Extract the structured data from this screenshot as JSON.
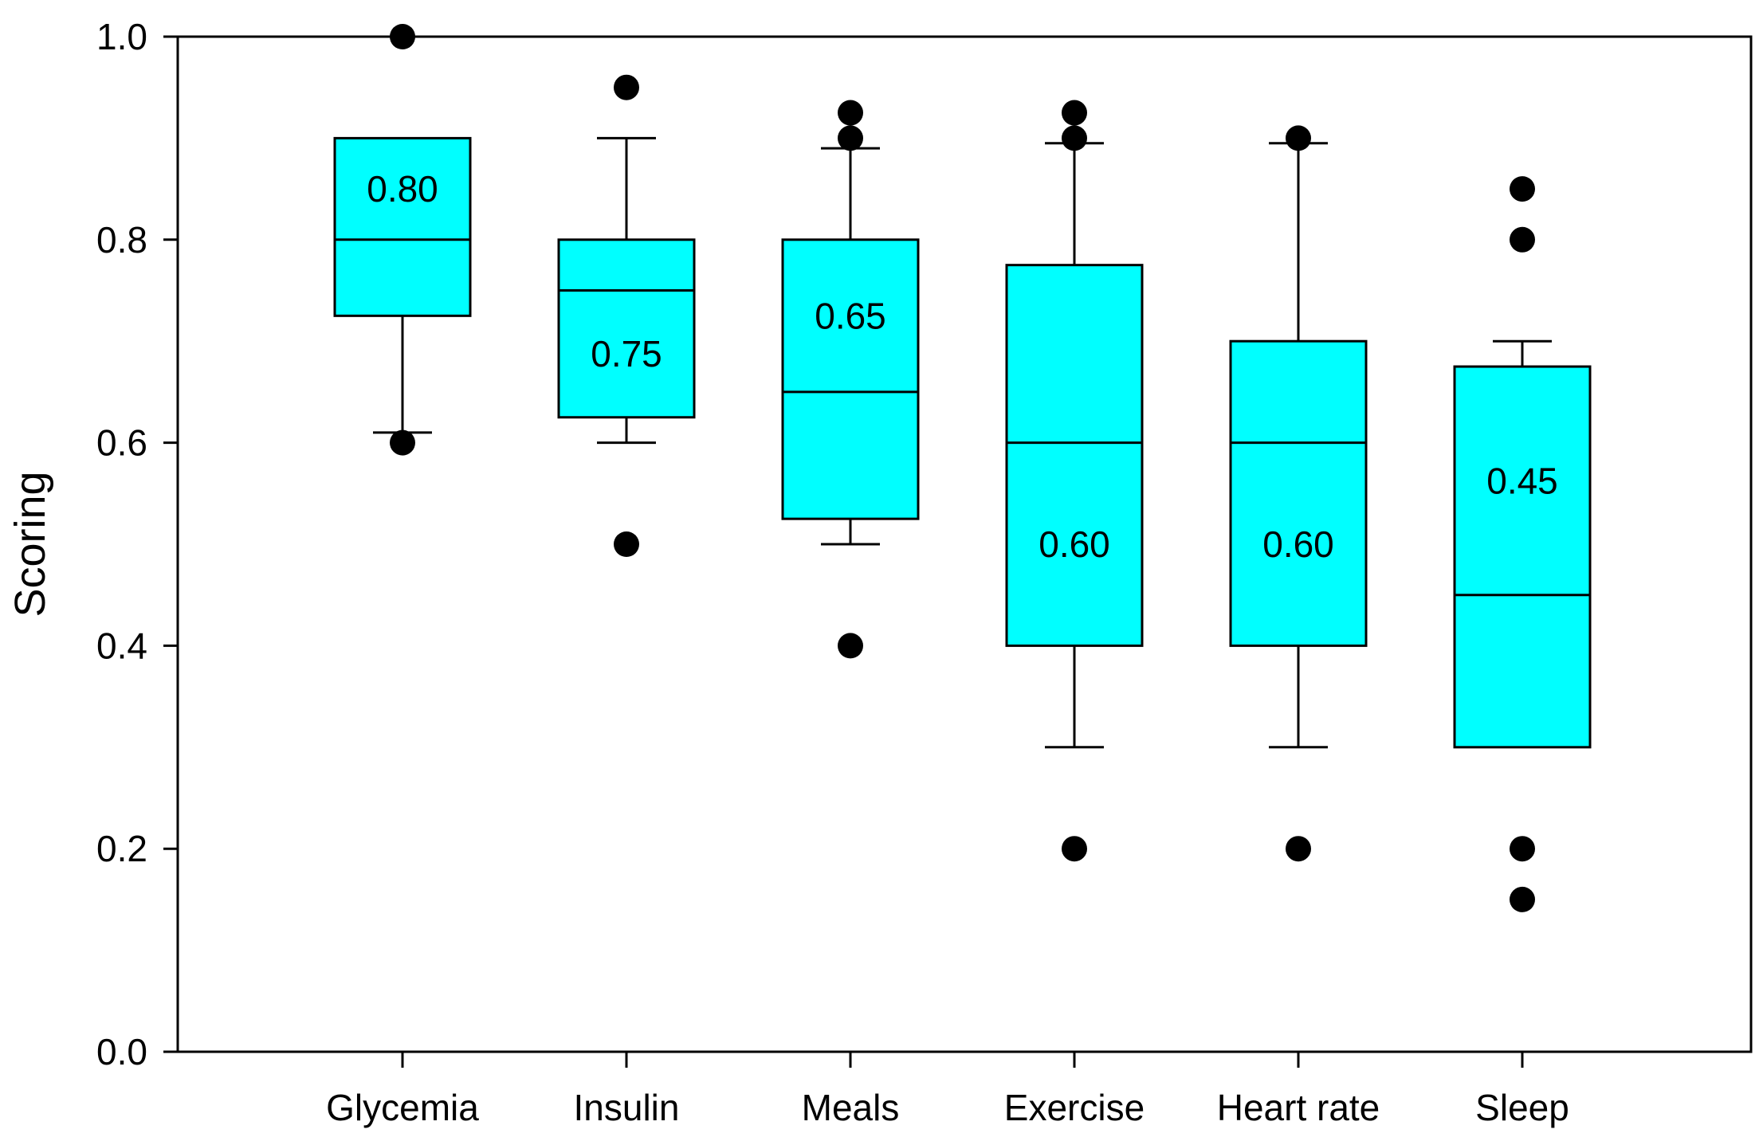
{
  "chart_data": {
    "type": "boxplot",
    "title": "",
    "xlabel": "",
    "ylabel": "Scoring",
    "ylim": [
      0,
      1.0
    ],
    "yticks": [
      "0.0",
      "0.2",
      "0.4",
      "0.6",
      "0.8",
      "1.0"
    ],
    "grid": false,
    "legend": "none",
    "box_color": "#00FFFF",
    "categories": [
      "Glycemia",
      "Insulin",
      "Meals",
      "Exercise",
      "Heart rate",
      "Sleep"
    ],
    "boxes": [
      {
        "name": "Glycemia",
        "whisker_low": 0.61,
        "q1": 0.725,
        "median": 0.8,
        "q3": 0.9,
        "whisker_high": null,
        "outliers": [
          1.0,
          0.6
        ],
        "median_label": "0.80"
      },
      {
        "name": "Insulin",
        "whisker_low": 0.6,
        "q1": 0.625,
        "median": 0.75,
        "q3": 0.8,
        "whisker_high": 0.9,
        "outliers": [
          0.95,
          0.5
        ],
        "median_label": "0.75"
      },
      {
        "name": "Meals",
        "whisker_low": 0.5,
        "q1": 0.525,
        "median": 0.65,
        "q3": 0.8,
        "whisker_high": 0.89,
        "outliers": [
          0.925,
          0.9,
          0.4
        ],
        "median_label": "0.65"
      },
      {
        "name": "Exercise",
        "whisker_low": 0.3,
        "q1": 0.4,
        "median": 0.6,
        "q3": 0.775,
        "whisker_high": 0.895,
        "outliers": [
          0.925,
          0.9,
          0.2
        ],
        "median_label": "0.60"
      },
      {
        "name": "Heart rate",
        "whisker_low": 0.3,
        "q1": 0.4,
        "median": 0.6,
        "q3": 0.7,
        "whisker_high": 0.895,
        "outliers": [
          0.9,
          0.2
        ],
        "median_label": "0.60"
      },
      {
        "name": "Sleep",
        "whisker_low": null,
        "q1": 0.3,
        "median": 0.45,
        "q3": 0.675,
        "whisker_high": 0.7,
        "outliers": [
          0.85,
          0.8,
          0.2,
          0.15
        ],
        "median_label": "0.45"
      }
    ]
  }
}
